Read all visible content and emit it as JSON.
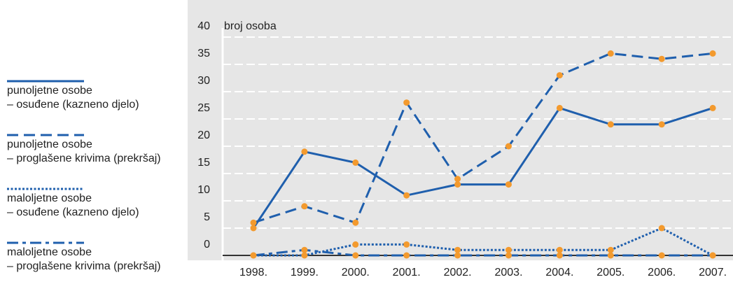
{
  "chart_data": {
    "type": "line",
    "ylabel": "broj osoba",
    "categories": [
      "1998.",
      "1999.",
      "2000.",
      "2001.",
      "2002.",
      "2003.",
      "2004.",
      "2005.",
      "2006.",
      "2007."
    ],
    "series": [
      {
        "name": "punoljetne osobe\n– osuđene (kazneno djelo)",
        "color": "#1f5fad",
        "line_style": "solid",
        "values": [
          5,
          19,
          17,
          11,
          13,
          13,
          27,
          24,
          24,
          27
        ]
      },
      {
        "name": "punoljetne osobe\n– proglašene krivima (prekršaj)",
        "color": "#1f5fad",
        "line_style": "dashed",
        "values": [
          6,
          9,
          6,
          28,
          14,
          20,
          33,
          37,
          36,
          37
        ]
      },
      {
        "name": "maloljetne osobe\n– osuđene (kazneno djelo)",
        "color": "#1f5fad",
        "line_style": "dotted",
        "values": [
          0,
          0,
          2,
          2,
          1,
          1,
          1,
          1,
          5,
          0
        ]
      },
      {
        "name": "maloljetne osobe\n– proglašene krivima (prekršaj)",
        "color": "#1f5fad",
        "line_style": "dashdot",
        "values": [
          0,
          1,
          0,
          0,
          0,
          0,
          0,
          0,
          0,
          0
        ]
      }
    ],
    "marker_color": "#f39a2e",
    "ylim": [
      0,
      40
    ],
    "yticks": [
      0,
      5,
      10,
      15,
      20,
      25,
      30,
      35,
      40
    ],
    "grid": true
  }
}
